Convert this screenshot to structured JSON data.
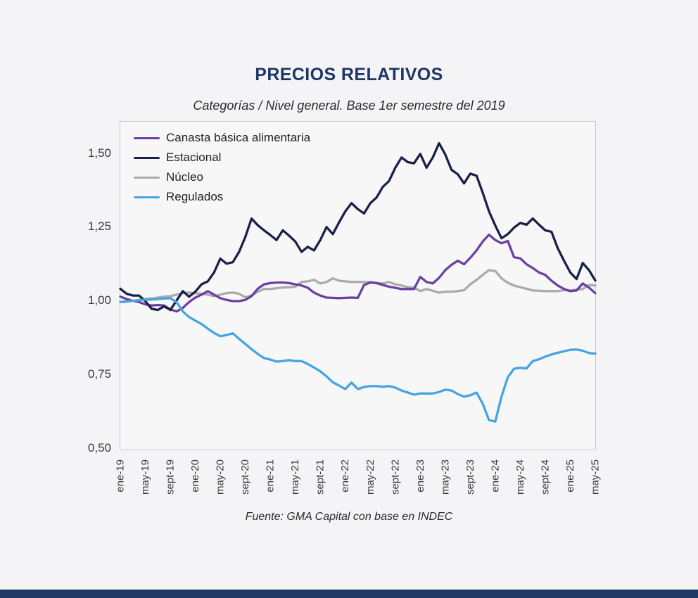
{
  "page": {
    "colors": {
      "page_bg": "#f4f4f6",
      "plot_bg": "#f7f7f8",
      "plot_border": "#c8c8cc",
      "title": "#1e3765",
      "accent_bar": "#1f3864"
    }
  },
  "header": {
    "title": "PRECIOS RELATIVOS",
    "subtitle": "Categorías / Nivel general. Base 1er semestre del 2019"
  },
  "footer": {
    "source": "Fuente: GMA Capital con base en INDEC"
  },
  "chart_data": {
    "type": "line",
    "title": "PRECIOS RELATIVOS",
    "subtitle": "Categorías / Nivel general. Base 1er semestre del 2019",
    "x_unit": "month",
    "x_start": "ene-19",
    "x_end": "may-25",
    "points_per_series": 77,
    "x_tick_every_months": 4,
    "x_tick_labels": [
      "ene-19",
      "may-19",
      "sept-19",
      "ene-20",
      "may-20",
      "sept-20",
      "ene-21",
      "may-21",
      "sept-21",
      "ene-22",
      "may-22",
      "sept-22",
      "ene-23",
      "may-23",
      "sept-23",
      "ene-24",
      "may-24",
      "sept-24",
      "ene-25",
      "may-25"
    ],
    "y_ticks": [
      {
        "label": "1,50",
        "value": 1.5
      },
      {
        "label": "1,25",
        "value": 1.25
      },
      {
        "label": "1,00",
        "value": 1.0
      },
      {
        "label": "0,75",
        "value": 0.75
      },
      {
        "label": "0,50",
        "value": 0.5
      }
    ],
    "ylim": [
      0.5,
      1.611
    ],
    "grid": false,
    "legend_position": "top-left-inside",
    "series": [
      {
        "name": "Canasta básica alimentaria",
        "color": "#6c3fa0",
        "values": [
          1.018,
          1.01,
          1.004,
          1.0,
          0.992,
          0.988,
          0.99,
          0.988,
          0.975,
          0.968,
          0.98,
          1.0,
          1.015,
          1.025,
          1.037,
          1.025,
          1.013,
          1.007,
          1.003,
          1.003,
          1.007,
          1.02,
          1.045,
          1.06,
          1.064,
          1.066,
          1.066,
          1.064,
          1.06,
          1.056,
          1.048,
          1.032,
          1.022,
          1.015,
          1.014,
          1.013,
          1.014,
          1.015,
          1.014,
          1.058,
          1.066,
          1.064,
          1.058,
          1.052,
          1.048,
          1.044,
          1.044,
          1.044,
          1.085,
          1.068,
          1.063,
          1.082,
          1.108,
          1.126,
          1.14,
          1.128,
          1.15,
          1.175,
          1.205,
          1.228,
          1.21,
          1.199,
          1.207,
          1.152,
          1.148,
          1.128,
          1.115,
          1.1,
          1.092,
          1.072,
          1.056,
          1.044,
          1.037,
          1.039,
          1.063,
          1.049,
          1.03
        ]
      },
      {
        "name": "Estacional",
        "color": "#1a2147",
        "values": [
          1.045,
          1.028,
          1.022,
          1.022,
          1.003,
          0.977,
          0.973,
          0.985,
          0.973,
          1.005,
          1.037,
          1.018,
          1.035,
          1.06,
          1.07,
          1.1,
          1.147,
          1.13,
          1.135,
          1.17,
          1.22,
          1.283,
          1.26,
          1.243,
          1.227,
          1.21,
          1.243,
          1.225,
          1.205,
          1.17,
          1.187,
          1.175,
          1.21,
          1.254,
          1.23,
          1.27,
          1.307,
          1.335,
          1.315,
          1.3,
          1.335,
          1.354,
          1.39,
          1.41,
          1.455,
          1.49,
          1.474,
          1.47,
          1.502,
          1.455,
          1.49,
          1.538,
          1.5,
          1.448,
          1.433,
          1.402,
          1.435,
          1.428,
          1.37,
          1.307,
          1.259,
          1.216,
          1.23,
          1.252,
          1.268,
          1.262,
          1.283,
          1.262,
          1.243,
          1.238,
          1.182,
          1.14,
          1.1,
          1.078,
          1.132,
          1.108,
          1.073
        ]
      },
      {
        "name": "Núcleo",
        "color": "#ababab",
        "values": [
          1.0,
          1.001,
          1.004,
          1.007,
          1.01,
          1.012,
          1.015,
          1.018,
          1.02,
          1.025,
          1.03,
          1.032,
          1.03,
          1.028,
          1.025,
          1.02,
          1.025,
          1.03,
          1.032,
          1.028,
          1.016,
          1.022,
          1.035,
          1.044,
          1.044,
          1.047,
          1.049,
          1.05,
          1.052,
          1.068,
          1.07,
          1.075,
          1.063,
          1.068,
          1.08,
          1.072,
          1.07,
          1.068,
          1.068,
          1.068,
          1.068,
          1.065,
          1.063,
          1.068,
          1.06,
          1.056,
          1.05,
          1.049,
          1.037,
          1.044,
          1.038,
          1.032,
          1.035,
          1.035,
          1.037,
          1.04,
          1.06,
          1.075,
          1.092,
          1.108,
          1.105,
          1.08,
          1.065,
          1.056,
          1.05,
          1.045,
          1.039,
          1.038,
          1.037,
          1.037,
          1.037,
          1.04,
          1.039,
          1.042,
          1.044,
          1.058,
          1.056
        ]
      },
      {
        "name": "Regulados",
        "color": "#47a4e0",
        "values": [
          1.0,
          1.002,
          1.004,
          1.006,
          1.008,
          1.008,
          1.01,
          1.012,
          1.013,
          1.0,
          0.968,
          0.949,
          0.937,
          0.925,
          0.91,
          0.895,
          0.884,
          0.888,
          0.894,
          0.875,
          0.858,
          0.84,
          0.824,
          0.81,
          0.805,
          0.798,
          0.8,
          0.803,
          0.8,
          0.8,
          0.79,
          0.778,
          0.765,
          0.748,
          0.728,
          0.717,
          0.705,
          0.727,
          0.705,
          0.712,
          0.715,
          0.715,
          0.713,
          0.715,
          0.71,
          0.7,
          0.693,
          0.686,
          0.69,
          0.69,
          0.69,
          0.695,
          0.703,
          0.7,
          0.688,
          0.679,
          0.684,
          0.693,
          0.655,
          0.6,
          0.595,
          0.68,
          0.745,
          0.774,
          0.777,
          0.775,
          0.8,
          0.806,
          0.815,
          0.822,
          0.828,
          0.833,
          0.838,
          0.839,
          0.835,
          0.827,
          0.825
        ]
      }
    ]
  }
}
